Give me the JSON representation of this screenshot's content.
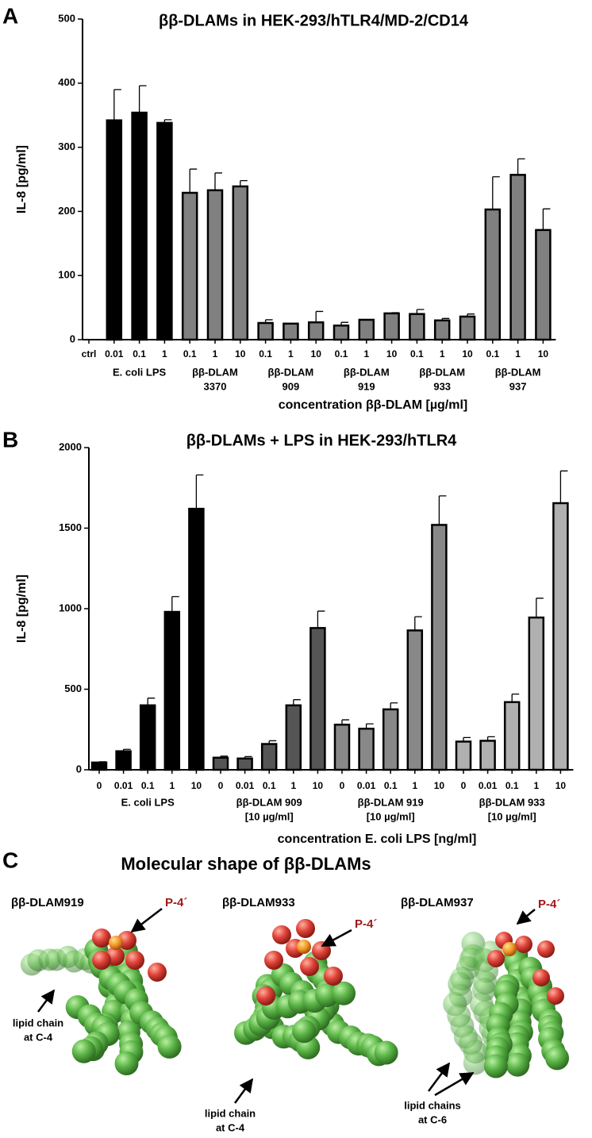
{
  "panel_labels": [
    "A",
    "B",
    "C"
  ],
  "chart_data": [
    {
      "type": "bar",
      "title": "ββ-DLAMs in HEK-293/hTLR4/MD-2/CD14",
      "ylabel": "IL-8 [pg/ml]",
      "xlabel": "concentration ββ-DLAM [µg/ml]",
      "ylim": [
        0,
        500
      ],
      "yticks": [
        0,
        100,
        200,
        300,
        400,
        500
      ],
      "series": [
        {
          "color": "#000000",
          "categories": [
            "ctrl"
          ],
          "values": [
            0
          ],
          "errors": [
            0
          ]
        },
        {
          "name": "E. coli  LPS",
          "color": "#000000",
          "categories": [
            "0.01",
            "0.1",
            "1"
          ],
          "values": [
            342,
            354,
            338
          ],
          "errors": [
            48,
            42,
            5
          ]
        },
        {
          "name": [
            "ββ-DLAM",
            "3370"
          ],
          "color": "#808080",
          "categories": [
            "0.1",
            "1",
            "10"
          ],
          "values": [
            229,
            233,
            239
          ],
          "errors": [
            37,
            27,
            9
          ]
        },
        {
          "name": [
            "ββ-DLAM",
            "909"
          ],
          "color": "#808080",
          "categories": [
            "0.1",
            "1",
            "10"
          ],
          "values": [
            26,
            25,
            27
          ],
          "errors": [
            5,
            0,
            17
          ]
        },
        {
          "name": [
            "ββ-DLAM",
            "919"
          ],
          "color": "#808080",
          "categories": [
            "0.1",
            "1",
            "10"
          ],
          "values": [
            22,
            31,
            41
          ],
          "errors": [
            5,
            0,
            1
          ]
        },
        {
          "name": [
            "ββ-DLAM",
            "933"
          ],
          "color": "#808080",
          "categories": [
            "0.1",
            "1",
            "10"
          ],
          "values": [
            40,
            30,
            36
          ],
          "errors": [
            7,
            3,
            4
          ]
        },
        {
          "name": [
            "ββ-DLAM",
            "937"
          ],
          "color": "#808080",
          "categories": [
            "0.1",
            "1",
            "10"
          ],
          "values": [
            203,
            257,
            171
          ],
          "errors": [
            51,
            25,
            33
          ]
        }
      ]
    },
    {
      "type": "bar",
      "title": "ββ-DLAMs + LPS in HEK-293/hTLR4",
      "ylabel": "IL-8 [pg/ml]",
      "xlabel": "concentration E. coli LPS  [ng/ml]",
      "ylim": [
        0,
        2000
      ],
      "yticks": [
        0,
        500,
        1000,
        1500,
        2000
      ],
      "series": [
        {
          "name": "E. coli  LPS",
          "color": "#000000",
          "categories": [
            "0",
            "0.01",
            "0.1",
            "1",
            "10"
          ],
          "values": [
            45,
            115,
            400,
            980,
            1620
          ],
          "errors": [
            5,
            12,
            45,
            95,
            210
          ]
        },
        {
          "name": [
            "ββ-DLAM 909",
            "[10 µg/ml]"
          ],
          "color": "#555555",
          "categories": [
            "0",
            "0.01",
            "0.1",
            "1",
            "10"
          ],
          "values": [
            75,
            70,
            160,
            400,
            880
          ],
          "errors": [
            10,
            12,
            20,
            35,
            105
          ]
        },
        {
          "name": [
            "ββ-DLAM 919",
            "[10 µg/ml]"
          ],
          "color": "#888888",
          "categories": [
            "0",
            "0.01",
            "0.1",
            "1",
            "10"
          ],
          "values": [
            280,
            255,
            375,
            865,
            1520
          ],
          "errors": [
            30,
            30,
            40,
            85,
            180
          ]
        },
        {
          "name": [
            "ββ-DLAM 933",
            "[10 µg/ml]"
          ],
          "color": "#b0b0b0",
          "categories": [
            "0",
            "0.01",
            "0.1",
            "1",
            "10"
          ],
          "values": [
            175,
            180,
            420,
            945,
            1655
          ],
          "errors": [
            25,
            25,
            50,
            120,
            200
          ]
        }
      ]
    }
  ],
  "panel_c": {
    "title": "Molecular shape of ββ-DLAMs",
    "molecules": [
      {
        "name": "ββ-DLAM919",
        "phosphate_label": "P-4´",
        "lipid_label": [
          "lipid chain",
          "at C-4"
        ]
      },
      {
        "name": "ββ-DLAM933",
        "phosphate_label": "P-4´",
        "lipid_label": [
          "lipid chain",
          "at C-4"
        ]
      },
      {
        "name": "ββ-DLAM937",
        "phosphate_label": "P-4´",
        "lipid_label": [
          "lipid chains",
          "at C-6"
        ]
      }
    ]
  }
}
